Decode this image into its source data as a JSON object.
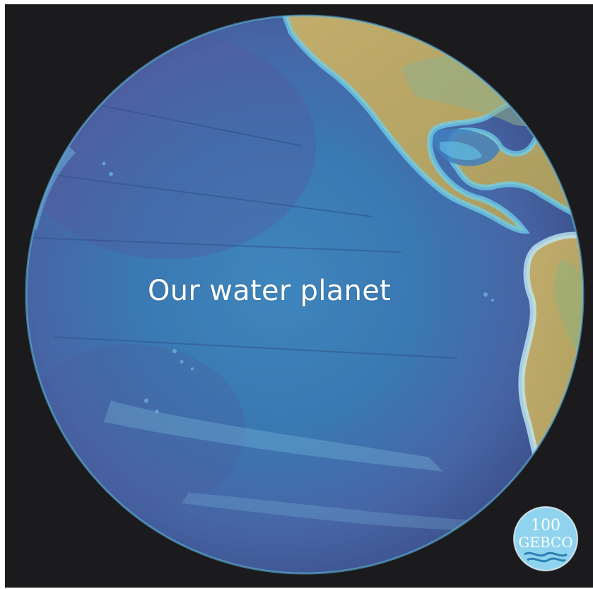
{
  "caption": "Our water planet",
  "logo": {
    "icon": "gebco-100-logo",
    "lettering_top": "100",
    "lettering_bottom": "GEBCO"
  },
  "colors": {
    "background": "#1b1b1d",
    "ocean_deep": "#4a5aa0",
    "ocean_mid": "#3c82b8",
    "ocean_shallow": "#5ec8ea",
    "land": "#b8a865",
    "land_green": "#8fae8a",
    "caption_text": "#ffffff"
  }
}
